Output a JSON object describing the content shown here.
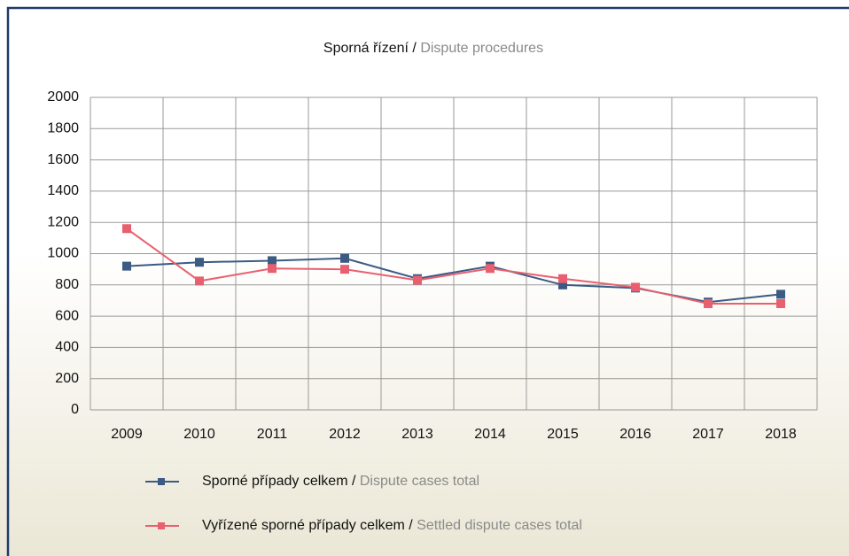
{
  "chart_data": {
    "type": "line",
    "title": "Sporná řízení / Dispute procedures",
    "categories": [
      "2009",
      "2010",
      "2011",
      "2012",
      "2013",
      "2014",
      "2015",
      "2016",
      "2017",
      "2018"
    ],
    "series": [
      {
        "name": "Sporné případy celkem / Dispute cases total",
        "color": "#3b5a84",
        "values": [
          920,
          945,
          955,
          970,
          840,
          920,
          800,
          780,
          690,
          740
        ]
      },
      {
        "name": "Vyřízené sporné případy celkem / Settled dispute cases total",
        "color": "#e8606f",
        "values": [
          1160,
          825,
          905,
          900,
          830,
          905,
          840,
          785,
          680,
          680
        ]
      }
    ],
    "ylim": [
      0,
      2000
    ],
    "yticks": [
      0,
      200,
      400,
      600,
      800,
      1000,
      1200,
      1400,
      1600,
      1800,
      2000
    ],
    "grid": true
  }
}
